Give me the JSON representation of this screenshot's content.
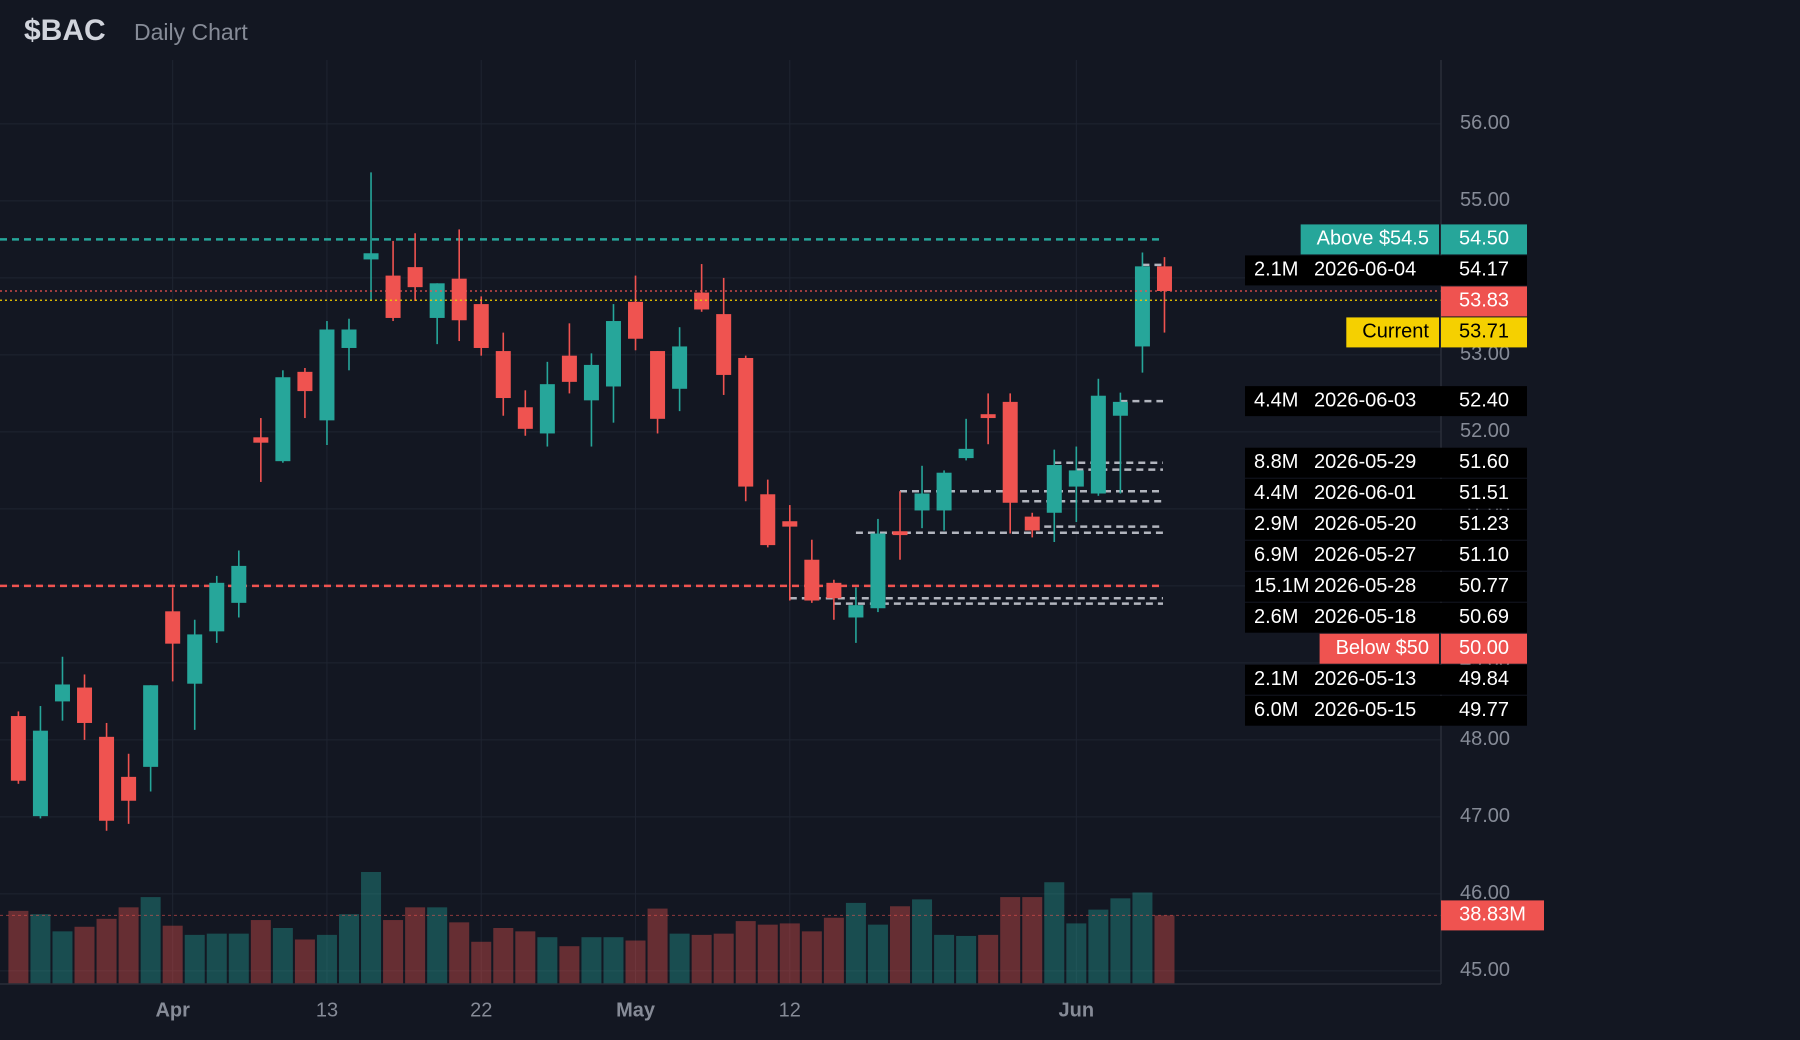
{
  "chart_data": {
    "type": "candlestick",
    "title": "$BAC",
    "subtitle": "Daily Chart",
    "categories": [
      null,
      null,
      null,
      null,
      null,
      null,
      null,
      "Apr",
      null,
      null,
      null,
      null,
      null,
      null,
      "13",
      null,
      null,
      null,
      null,
      null,
      null,
      "22",
      null,
      null,
      null,
      null,
      null,
      null,
      "May",
      null,
      null,
      null,
      null,
      null,
      null,
      "12",
      null,
      null,
      null,
      null,
      null,
      null,
      null,
      null,
      null,
      null,
      null,
      null,
      "Jun",
      null,
      null,
      null,
      null
    ],
    "open": [
      48.31,
      47.01,
      48.5,
      48.68,
      48.04,
      47.52,
      47.65,
      49.67,
      48.73,
      49.41,
      49.78,
      51.93,
      51.62,
      52.78,
      52.15,
      53.09,
      54.24,
      54.03,
      54.14,
      53.48,
      53.99,
      53.66,
      53.05,
      52.32,
      51.98,
      52.99,
      52.41,
      52.59,
      53.69,
      53.05,
      52.56,
      53.81,
      53.53,
      52.96,
      51.19,
      50.84,
      50.34,
      50.04,
      49.59,
      49.71,
      50.71,
      50.98,
      50.98,
      51.66,
      52.23,
      52.39,
      50.9,
      50.95,
      51.29,
      51.2,
      52.21,
      53.11,
      54.15
    ],
    "high": [
      48.37,
      48.44,
      49.08,
      48.85,
      48.22,
      47.82,
      48.71,
      49.98,
      49.56,
      50.13,
      50.46,
      52.18,
      52.8,
      52.83,
      53.44,
      53.47,
      55.37,
      54.48,
      54.58,
      53.93,
      54.63,
      53.76,
      53.29,
      52.54,
      52.91,
      53.41,
      53.02,
      53.66,
      54.03,
      53.05,
      53.36,
      54.18,
      54.0,
      52.99,
      51.38,
      51.05,
      50.6,
      50.08,
      49.98,
      50.87,
      51.23,
      51.56,
      51.5,
      52.17,
      52.5,
      52.5,
      50.95,
      51.77,
      51.81,
      52.69,
      52.51,
      54.33,
      54.27
    ],
    "low": [
      47.43,
      46.98,
      48.25,
      48.0,
      46.82,
      46.91,
      47.33,
      48.76,
      48.13,
      49.26,
      49.59,
      51.35,
      51.6,
      52.18,
      51.83,
      52.8,
      53.7,
      53.44,
      53.7,
      53.14,
      53.18,
      52.99,
      52.21,
      51.95,
      51.81,
      52.5,
      51.81,
      52.12,
      53.06,
      51.98,
      52.27,
      53.56,
      52.48,
      51.1,
      50.5,
      49.81,
      49.78,
      49.56,
      49.26,
      49.66,
      50.34,
      50.75,
      50.72,
      51.63,
      51.84,
      50.68,
      50.63,
      50.57,
      50.83,
      51.17,
      51.2,
      52.77,
      53.29
    ],
    "close": [
      47.47,
      48.12,
      48.72,
      48.22,
      46.95,
      47.21,
      48.71,
      49.25,
      49.37,
      50.04,
      50.26,
      51.86,
      52.71,
      52.53,
      53.33,
      53.33,
      54.32,
      53.48,
      53.88,
      53.93,
      53.45,
      53.09,
      52.44,
      52.04,
      52.62,
      52.65,
      52.87,
      53.44,
      53.21,
      52.17,
      53.11,
      53.59,
      52.74,
      51.29,
      50.53,
      50.77,
      49.81,
      49.84,
      49.75,
      50.68,
      50.66,
      51.2,
      51.47,
      51.78,
      52.18,
      51.08,
      50.72,
      51.57,
      51.5,
      52.47,
      52.39,
      54.15,
      53.83
    ],
    "volume": [
      41.4,
      39.5,
      29.8,
      32.4,
      36.9,
      43.4,
      49.2,
      33.0,
      27.8,
      28.5,
      28.5,
      36.2,
      31.7,
      25.2,
      27.8,
      39.5,
      63.4,
      36.2,
      43.4,
      43.4,
      34.9,
      23.9,
      31.7,
      29.8,
      26.5,
      21.4,
      26.5,
      26.5,
      24.6,
      42.7,
      28.5,
      27.8,
      28.5,
      35.6,
      33.6,
      34.3,
      29.8,
      37.5,
      45.9,
      33.6,
      44.0,
      47.9,
      27.8,
      27.2,
      27.8,
      49.2,
      49.2,
      57.6,
      34.3,
      42.1,
      48.5,
      51.8,
      38.83
    ],
    "up_color": "#26a69a",
    "down_color": "#ef5350",
    "ylim": [
      44.83,
      56.83
    ],
    "yticks": [
      {
        "value": 45,
        "label": "45.00"
      },
      {
        "value": 46,
        "label": "46.00"
      },
      {
        "value": 47,
        "label": "47.00"
      },
      {
        "value": 48,
        "label": "48.00"
      },
      {
        "value": 49,
        "label": "49.00"
      },
      {
        "value": 50,
        "label": "50.00"
      },
      {
        "value": 51,
        "label": "51.00"
      },
      {
        "value": 52,
        "label": "52.00"
      },
      {
        "value": 53,
        "label": "53.00"
      },
      {
        "value": 54,
        "label": "54.00"
      },
      {
        "value": 55,
        "label": "55.00"
      },
      {
        "value": 56,
        "label": "56.00"
      }
    ],
    "grid": true,
    "alerts": [
      {
        "name": "Above $54.5",
        "value": 54.5,
        "label": "54.50",
        "color": "#26a69a"
      },
      {
        "name": "Below $50",
        "value": 50,
        "label": "50.00",
        "color": "#ef5350"
      }
    ],
    "last_price": {
      "value": 53.83,
      "label": "53.83",
      "color": "#ef5350"
    },
    "current": {
      "name": "Current",
      "value": 53.71,
      "label": "53.71",
      "color": "#f5d000"
    },
    "volume_last": {
      "value": 38.83,
      "label": "38.83M",
      "color": "#ef5350"
    },
    "levels": [
      {
        "volume": "2.1M",
        "date": "2026-06-04",
        "price": {
          "value": 54.17,
          "label": "54.17"
        }
      },
      {
        "volume": "4.4M",
        "date": "2026-06-03",
        "price": {
          "value": 52.4,
          "label": "52.40"
        }
      },
      {
        "volume": "8.8M",
        "date": "2026-05-29",
        "price": {
          "value": 51.6,
          "label": "51.60"
        }
      },
      {
        "volume": "4.4M",
        "date": "2026-06-01",
        "price": {
          "value": 51.51,
          "label": "51.51"
        }
      },
      {
        "volume": "2.9M",
        "date": "2026-05-20",
        "price": {
          "value": 51.23,
          "label": "51.23"
        }
      },
      {
        "volume": "6.9M",
        "date": "2026-05-27",
        "price": {
          "value": 51.1,
          "label": "51.10"
        }
      },
      {
        "volume": "15.1M",
        "date": "2026-05-28",
        "price": {
          "value": 50.77,
          "label": "50.77"
        }
      },
      {
        "volume": "2.6M",
        "date": "2026-05-18",
        "price": {
          "value": 50.69,
          "label": "50.69"
        }
      },
      {
        "volume": "2.1M",
        "date": "2026-05-13",
        "price": {
          "value": 49.84,
          "label": "49.84"
        }
      },
      {
        "volume": "6.0M",
        "date": "2026-05-15",
        "price": {
          "value": 49.77,
          "label": "49.77"
        }
      }
    ]
  }
}
